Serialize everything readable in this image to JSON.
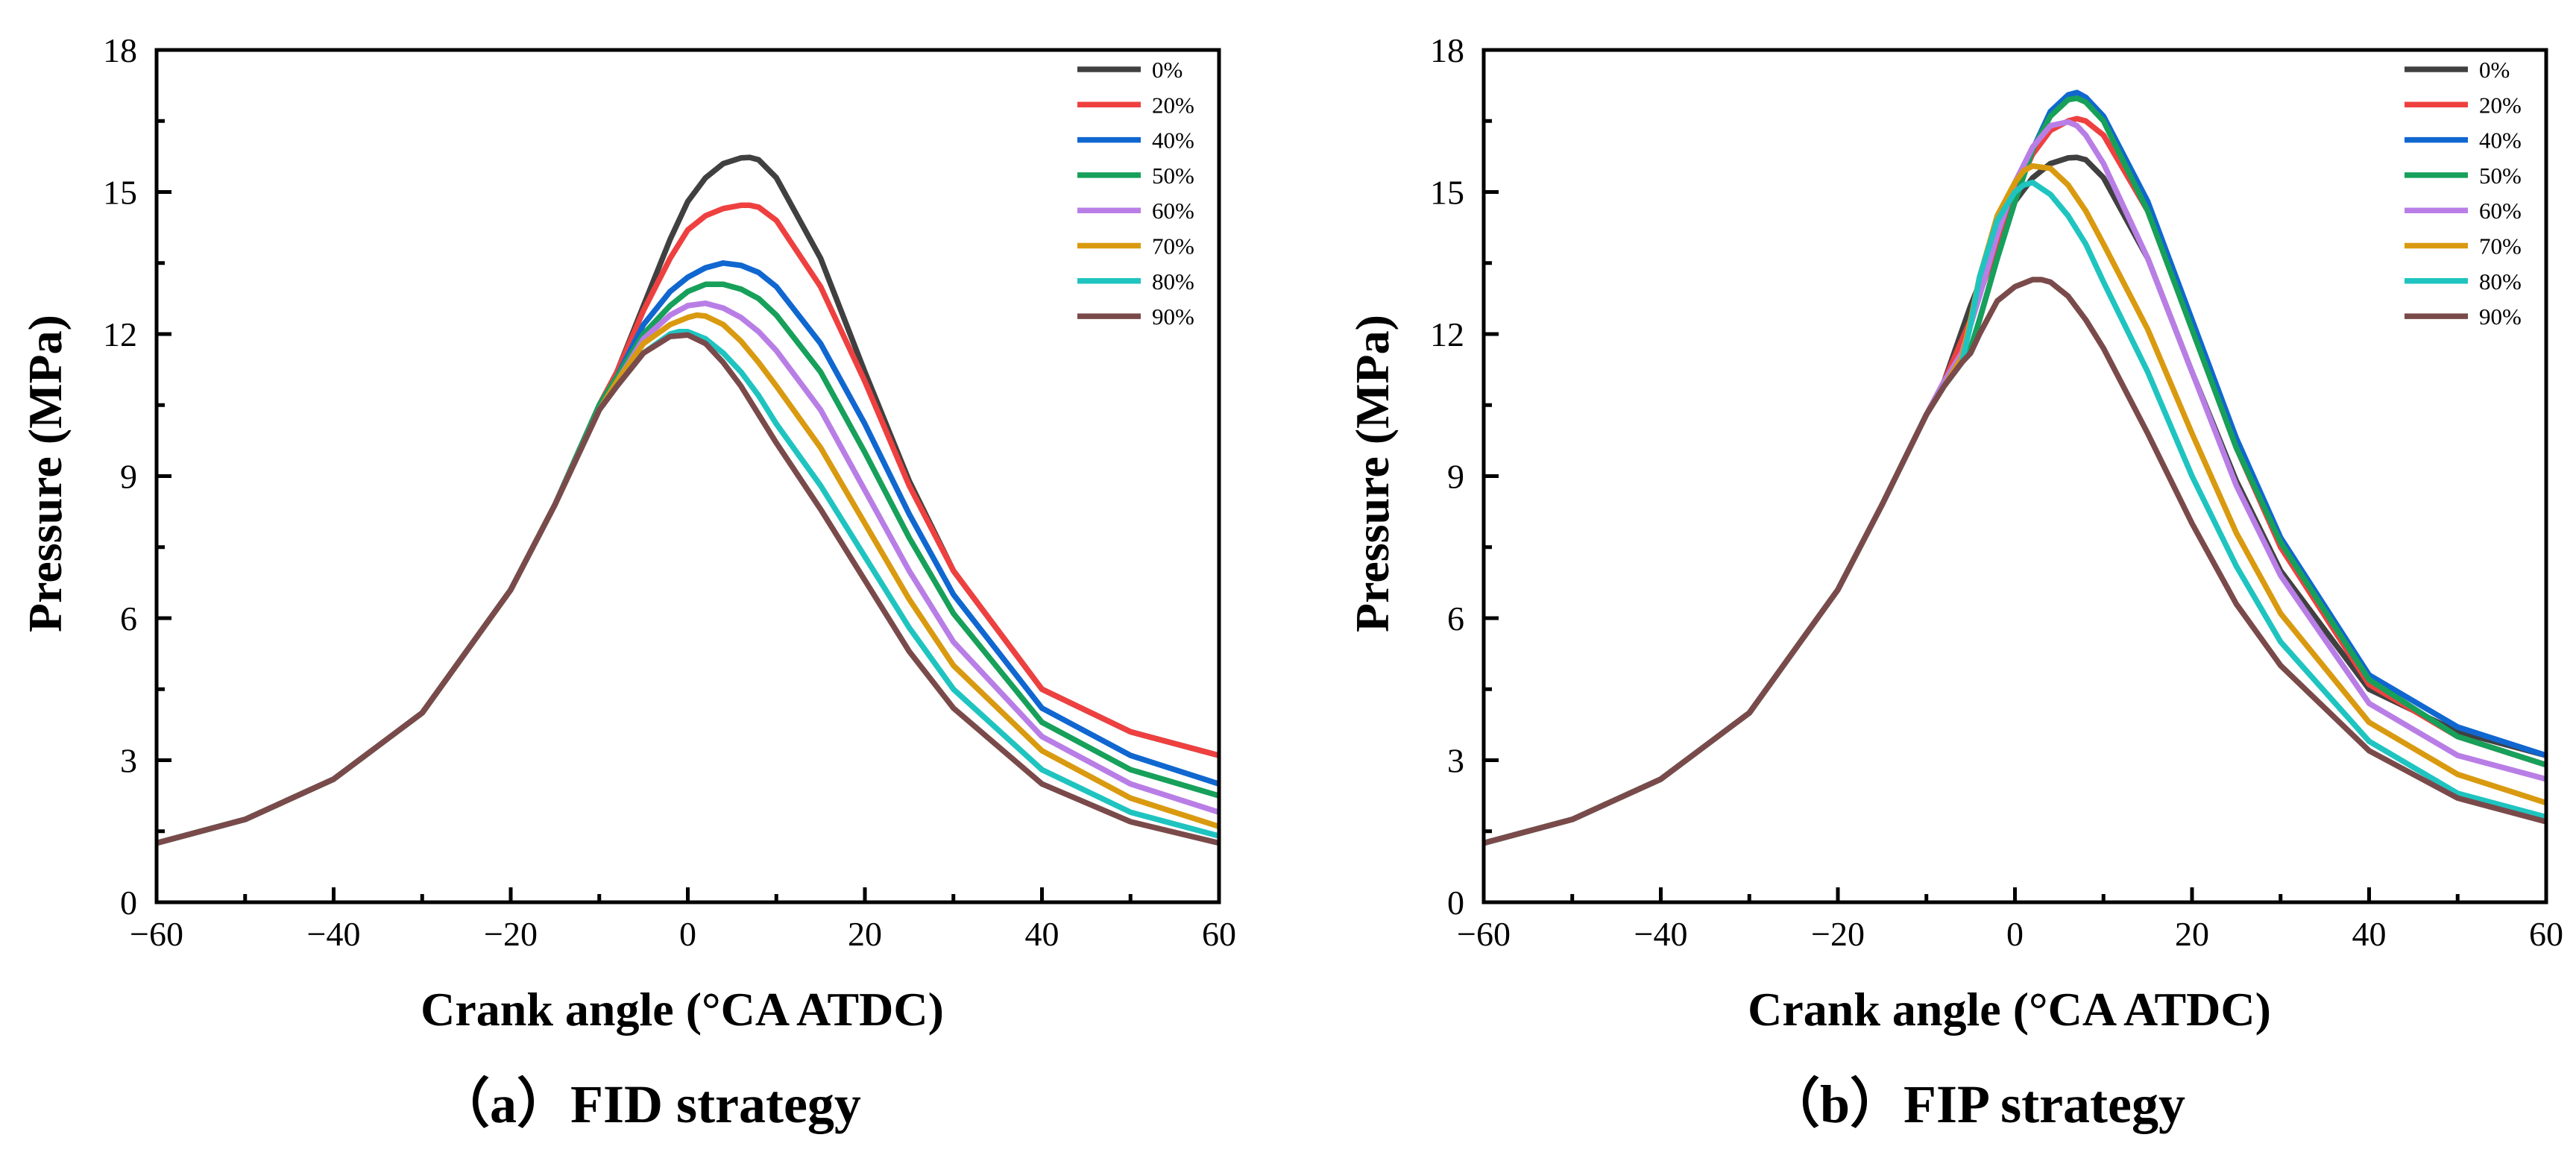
{
  "chart_data": [
    {
      "type": "line",
      "caption": "（a）FID strategy",
      "xlabel": "Crank angle (°CA ATDC)",
      "ylabel": "Pressure (MPa)",
      "xlim": [
        -60,
        60
      ],
      "ylim": [
        0,
        18
      ],
      "xticks": [
        -60,
        -40,
        -20,
        0,
        20,
        40,
        60
      ],
      "yticks": [
        0,
        3,
        6,
        9,
        12,
        15,
        18
      ],
      "xtick_labels": [
        "−60",
        "−40",
        "−20",
        "0",
        "20",
        "40",
        "60"
      ],
      "ytick_labels": [
        "0",
        "3",
        "6",
        "9",
        "12",
        "15",
        "18"
      ],
      "legend_position": "top-right",
      "grid": false,
      "series": [
        {
          "name": "0%",
          "color": "#404040",
          "x": [
            -60,
            -50,
            -40,
            -30,
            -20,
            -15,
            -10,
            -8,
            -5,
            -2,
            0,
            2,
            4,
            6,
            7,
            8,
            10,
            15,
            20,
            25,
            30,
            40,
            50,
            60
          ],
          "y": [
            1.25,
            1.75,
            2.6,
            4.0,
            6.6,
            8.4,
            10.5,
            11.2,
            12.6,
            14.0,
            14.8,
            15.3,
            15.6,
            15.72,
            15.73,
            15.68,
            15.3,
            13.6,
            11.2,
            8.9,
            7.0,
            4.5,
            3.6,
            3.1
          ]
        },
        {
          "name": "20%",
          "color": "#ef4040",
          "x": [
            -60,
            -50,
            -40,
            -30,
            -20,
            -15,
            -10,
            -8,
            -5,
            -2,
            0,
            2,
            4,
            6,
            7,
            8,
            10,
            15,
            20,
            25,
            30,
            40,
            50,
            60
          ],
          "y": [
            1.25,
            1.75,
            2.6,
            4.0,
            6.6,
            8.4,
            10.5,
            11.2,
            12.5,
            13.6,
            14.2,
            14.5,
            14.65,
            14.72,
            14.72,
            14.68,
            14.4,
            13.0,
            11.0,
            8.8,
            7.0,
            4.5,
            3.6,
            3.1
          ]
        },
        {
          "name": "40%",
          "color": "#1067d0",
          "x": [
            -60,
            -50,
            -40,
            -30,
            -20,
            -15,
            -10,
            -8,
            -5,
            -2,
            0,
            2,
            4,
            6,
            8,
            10,
            15,
            20,
            25,
            30,
            40,
            50,
            60
          ],
          "y": [
            1.25,
            1.75,
            2.6,
            4.0,
            6.6,
            8.4,
            10.5,
            11.1,
            12.2,
            12.9,
            13.2,
            13.4,
            13.5,
            13.45,
            13.3,
            13.0,
            11.8,
            10.1,
            8.2,
            6.5,
            4.1,
            3.1,
            2.5
          ]
        },
        {
          "name": "50%",
          "color": "#17a05a",
          "x": [
            -60,
            -50,
            -40,
            -30,
            -20,
            -15,
            -10,
            -8,
            -5,
            -2,
            0,
            2,
            4,
            6,
            8,
            10,
            15,
            20,
            25,
            30,
            40,
            50,
            60
          ],
          "y": [
            1.25,
            1.75,
            2.6,
            4.0,
            6.6,
            8.4,
            10.5,
            11.1,
            12.0,
            12.6,
            12.9,
            13.05,
            13.05,
            12.95,
            12.75,
            12.4,
            11.2,
            9.5,
            7.7,
            6.1,
            3.8,
            2.8,
            2.25
          ]
        },
        {
          "name": "60%",
          "color": "#b97ee6",
          "x": [
            -60,
            -50,
            -40,
            -30,
            -20,
            -15,
            -10,
            -8,
            -5,
            -2,
            0,
            2,
            4,
            6,
            8,
            10,
            15,
            20,
            25,
            30,
            40,
            50,
            60
          ],
          "y": [
            1.25,
            1.75,
            2.6,
            4.0,
            6.6,
            8.4,
            10.4,
            11.0,
            11.9,
            12.4,
            12.6,
            12.65,
            12.55,
            12.35,
            12.05,
            11.65,
            10.4,
            8.7,
            7.0,
            5.5,
            3.5,
            2.5,
            1.9
          ]
        },
        {
          "name": "70%",
          "color": "#d99a10",
          "x": [
            -60,
            -50,
            -40,
            -30,
            -20,
            -15,
            -10,
            -8,
            -5,
            -2,
            0,
            1,
            2,
            4,
            6,
            8,
            10,
            15,
            20,
            25,
            30,
            40,
            50,
            60
          ],
          "y": [
            1.25,
            1.75,
            2.6,
            4.0,
            6.6,
            8.4,
            10.4,
            11.0,
            11.8,
            12.2,
            12.35,
            12.4,
            12.38,
            12.2,
            11.85,
            11.4,
            10.9,
            9.6,
            8.0,
            6.4,
            5.0,
            3.2,
            2.2,
            1.6
          ]
        },
        {
          "name": "80%",
          "color": "#1fc4c0",
          "x": [
            -60,
            -50,
            -40,
            -30,
            -20,
            -15,
            -10,
            -8,
            -5,
            -2,
            -1,
            0,
            2,
            4,
            6,
            8,
            10,
            15,
            20,
            25,
            30,
            40,
            50,
            60
          ],
          "y": [
            1.25,
            1.75,
            2.6,
            4.0,
            6.6,
            8.4,
            10.4,
            10.9,
            11.6,
            12.0,
            12.05,
            12.05,
            11.9,
            11.6,
            11.2,
            10.7,
            10.1,
            8.8,
            7.3,
            5.8,
            4.5,
            2.8,
            1.9,
            1.4
          ]
        },
        {
          "name": "90%",
          "color": "#7a4a4a",
          "x": [
            -60,
            -50,
            -40,
            -30,
            -20,
            -15,
            -10,
            -8,
            -5,
            -2,
            0,
            2,
            4,
            6,
            8,
            10,
            15,
            20,
            25,
            30,
            40,
            50,
            60
          ],
          "y": [
            1.25,
            1.75,
            2.6,
            4.0,
            6.6,
            8.4,
            10.4,
            10.9,
            11.6,
            11.95,
            11.98,
            11.8,
            11.4,
            10.9,
            10.3,
            9.7,
            8.3,
            6.8,
            5.3,
            4.1,
            2.5,
            1.7,
            1.25
          ]
        }
      ]
    },
    {
      "type": "line",
      "caption": "（b）FIP strategy",
      "xlabel": "Crank angle (°CA ATDC)",
      "ylabel": "Pressure (MPa)",
      "xlim": [
        -60,
        60
      ],
      "ylim": [
        0,
        18
      ],
      "xticks": [
        -60,
        -40,
        -20,
        0,
        20,
        40,
        60
      ],
      "yticks": [
        0,
        3,
        6,
        9,
        12,
        15,
        18
      ],
      "xtick_labels": [
        "−60",
        "−40",
        "−20",
        "0",
        "20",
        "40",
        "60"
      ],
      "ytick_labels": [
        "0",
        "3",
        "6",
        "9",
        "12",
        "15",
        "18"
      ],
      "legend_position": "top-right",
      "grid": false,
      "series": [
        {
          "name": "0%",
          "color": "#404040",
          "x": [
            -60,
            -50,
            -40,
            -30,
            -20,
            -15,
            -10,
            -8,
            -5,
            -2,
            0,
            2,
            4,
            6,
            7,
            8,
            10,
            15,
            20,
            25,
            30,
            40,
            50,
            60
          ],
          "y": [
            1.25,
            1.75,
            2.6,
            4.0,
            6.6,
            8.4,
            10.3,
            11.0,
            12.6,
            14.0,
            14.8,
            15.3,
            15.6,
            15.72,
            15.73,
            15.68,
            15.3,
            13.6,
            11.2,
            8.9,
            7.0,
            4.5,
            3.6,
            3.1
          ]
        },
        {
          "name": "20%",
          "color": "#ef4040",
          "x": [
            -60,
            -50,
            -40,
            -30,
            -20,
            -15,
            -10,
            -8,
            -5,
            -2,
            0,
            2,
            4,
            6,
            7,
            8,
            10,
            15,
            20,
            25,
            30,
            40,
            50,
            60
          ],
          "y": [
            1.25,
            1.75,
            2.6,
            4.0,
            6.6,
            8.4,
            10.3,
            11.0,
            12.3,
            13.9,
            15.0,
            15.8,
            16.3,
            16.5,
            16.55,
            16.5,
            16.2,
            14.6,
            12.1,
            9.6,
            7.5,
            4.6,
            3.5,
            2.9
          ]
        },
        {
          "name": "40%",
          "color": "#1067d0",
          "x": [
            -60,
            -50,
            -40,
            -30,
            -20,
            -15,
            -10,
            -8,
            -6,
            -5,
            -4,
            -2,
            0,
            2,
            4,
            6,
            7,
            8,
            10,
            15,
            20,
            25,
            30,
            40,
            50,
            60
          ],
          "y": [
            1.25,
            1.75,
            2.6,
            4.0,
            6.6,
            8.4,
            10.3,
            10.9,
            11.4,
            11.7,
            12.3,
            13.6,
            14.8,
            15.9,
            16.7,
            17.05,
            17.1,
            17.0,
            16.6,
            14.8,
            12.3,
            9.8,
            7.7,
            4.8,
            3.7,
            3.1
          ]
        },
        {
          "name": "50%",
          "color": "#17a05a",
          "x": [
            -60,
            -50,
            -40,
            -30,
            -20,
            -15,
            -10,
            -8,
            -6,
            -5,
            -4,
            -2,
            0,
            2,
            4,
            6,
            7,
            8,
            10,
            15,
            20,
            25,
            30,
            40,
            50,
            60
          ],
          "y": [
            1.25,
            1.75,
            2.6,
            4.0,
            6.6,
            8.4,
            10.3,
            10.9,
            11.4,
            11.7,
            12.3,
            13.6,
            14.8,
            15.9,
            16.6,
            16.95,
            16.98,
            16.9,
            16.5,
            14.6,
            12.1,
            9.6,
            7.6,
            4.7,
            3.5,
            2.9
          ]
        },
        {
          "name": "60%",
          "color": "#b97ee6",
          "x": [
            -60,
            -50,
            -40,
            -30,
            -20,
            -15,
            -10,
            -8,
            -6,
            -4,
            -2,
            0,
            2,
            4,
            6,
            7,
            8,
            10,
            15,
            20,
            25,
            30,
            40,
            50,
            60
          ],
          "y": [
            1.25,
            1.75,
            2.6,
            4.0,
            6.6,
            8.4,
            10.3,
            11.0,
            11.6,
            12.8,
            14.1,
            15.2,
            15.95,
            16.4,
            16.48,
            16.4,
            16.2,
            15.6,
            13.6,
            11.2,
            8.8,
            6.9,
            4.2,
            3.1,
            2.6
          ]
        },
        {
          "name": "70%",
          "color": "#d99a10",
          "x": [
            -60,
            -50,
            -40,
            -30,
            -20,
            -15,
            -10,
            -8,
            -6,
            -5,
            -4,
            -2,
            0,
            1,
            2,
            4,
            6,
            8,
            10,
            15,
            20,
            25,
            30,
            40,
            50,
            60
          ],
          "y": [
            1.25,
            1.75,
            2.6,
            4.0,
            6.6,
            8.4,
            10.3,
            10.9,
            11.5,
            12.3,
            13.2,
            14.5,
            15.2,
            15.45,
            15.55,
            15.5,
            15.15,
            14.6,
            13.9,
            12.1,
            9.9,
            7.8,
            6.1,
            3.8,
            2.7,
            2.1
          ]
        },
        {
          "name": "80%",
          "color": "#1fc4c0",
          "x": [
            -60,
            -50,
            -40,
            -30,
            -20,
            -15,
            -10,
            -8,
            -6,
            -5,
            -4,
            -2,
            0,
            1,
            2,
            4,
            6,
            8,
            10,
            15,
            20,
            25,
            30,
            40,
            50,
            60
          ],
          "y": [
            1.25,
            1.75,
            2.6,
            4.0,
            6.6,
            8.4,
            10.3,
            10.9,
            11.4,
            12.2,
            13.2,
            14.4,
            15.0,
            15.15,
            15.2,
            14.95,
            14.5,
            13.9,
            13.1,
            11.2,
            9.0,
            7.1,
            5.5,
            3.4,
            2.3,
            1.8
          ]
        },
        {
          "name": "90%",
          "color": "#7a4a4a",
          "x": [
            -60,
            -50,
            -40,
            -30,
            -20,
            -15,
            -10,
            -8,
            -6,
            -5,
            -4,
            -2,
            0,
            2,
            3,
            4,
            6,
            8,
            10,
            15,
            20,
            25,
            30,
            40,
            50,
            60
          ],
          "y": [
            1.25,
            1.75,
            2.6,
            4.0,
            6.6,
            8.4,
            10.3,
            10.9,
            11.4,
            11.6,
            12.0,
            12.7,
            13.0,
            13.15,
            13.15,
            13.1,
            12.8,
            12.3,
            11.7,
            9.9,
            8.0,
            6.3,
            5.0,
            3.2,
            2.2,
            1.7
          ]
        }
      ]
    }
  ]
}
